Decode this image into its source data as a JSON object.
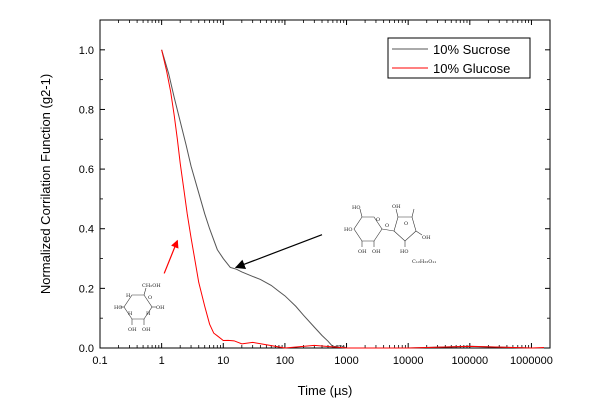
{
  "chart_data": {
    "type": "line",
    "title": "",
    "xlabel": "Time (µs)",
    "ylabel": "Normalized Corrilation Function (g2-1)",
    "xscale": "log",
    "xlim": [
      0.1,
      2000000
    ],
    "ylim": [
      0,
      1.1
    ],
    "xticks": [
      0.1,
      1,
      10,
      100,
      1000,
      10000,
      100000,
      1000000
    ],
    "xtick_labels": [
      "0.1",
      "1",
      "10",
      "100",
      "1000",
      "10000",
      "100000",
      "1000000"
    ],
    "yticks": [
      0,
      0.2,
      0.4,
      0.6,
      0.8,
      1.0
    ],
    "ytick_labels": [
      "0.0",
      "0.2",
      "0.4",
      "0.6",
      "0.8",
      "1.0"
    ],
    "grid": false,
    "legend": "top-right",
    "series": [
      {
        "name": "10% Sucrose",
        "color": "#555555",
        "x": [
          1,
          1.3,
          1.6,
          2,
          2.5,
          3,
          4,
          5,
          6,
          8,
          10,
          13,
          16,
          20,
          30,
          40,
          60,
          80,
          100,
          150,
          200,
          300,
          400,
          500,
          600,
          800,
          1000,
          10000,
          100000,
          1000000,
          1600000
        ],
        "y": [
          1.0,
          0.92,
          0.84,
          0.76,
          0.68,
          0.61,
          0.52,
          0.45,
          0.4,
          0.33,
          0.3,
          0.27,
          0.265,
          0.255,
          0.24,
          0.23,
          0.21,
          0.19,
          0.175,
          0.14,
          0.11,
          0.07,
          0.04,
          0.02,
          0.01,
          0.003,
          0.0,
          0.0,
          0.0,
          0.0,
          0.0
        ]
      },
      {
        "name": "10% Glucose",
        "color": "#ff0000",
        "x": [
          1,
          1.2,
          1.4,
          1.6,
          1.8,
          2,
          2.3,
          2.6,
          3,
          3.5,
          4,
          5,
          6,
          7,
          8,
          10,
          12,
          15,
          20,
          30,
          50,
          100,
          300,
          1000,
          10000,
          100000,
          1000000,
          1600000
        ],
        "y": [
          1.0,
          0.93,
          0.86,
          0.78,
          0.7,
          0.62,
          0.53,
          0.45,
          0.37,
          0.29,
          0.22,
          0.14,
          0.08,
          0.05,
          0.035,
          0.03,
          0.025,
          0.02,
          0.02,
          0.015,
          0.01,
          0.005,
          0.003,
          0.0,
          0.0,
          0.0,
          0.0,
          0.0
        ]
      }
    ],
    "annotations": [
      {
        "id": "glucose-arrow",
        "color": "#ff0000",
        "from": [
          1.1,
          0.25
        ],
        "to": [
          1.8,
          0.36
        ]
      },
      {
        "id": "sucrose-arrow",
        "color": "#000000",
        "from": [
          400,
          0.38
        ],
        "to": [
          16,
          0.27
        ]
      }
    ],
    "glucose_structure_labels": [
      "CH₂OH",
      "O",
      "H",
      "OH",
      "HO",
      "H",
      "OH",
      "H",
      "OH"
    ],
    "sucrose_structure_labels": [
      "HO",
      "O",
      "HO",
      "OH",
      "O",
      "O",
      "OH",
      "OH",
      "HO",
      "OH",
      "C₁₂H₂₂O₁₁"
    ]
  }
}
